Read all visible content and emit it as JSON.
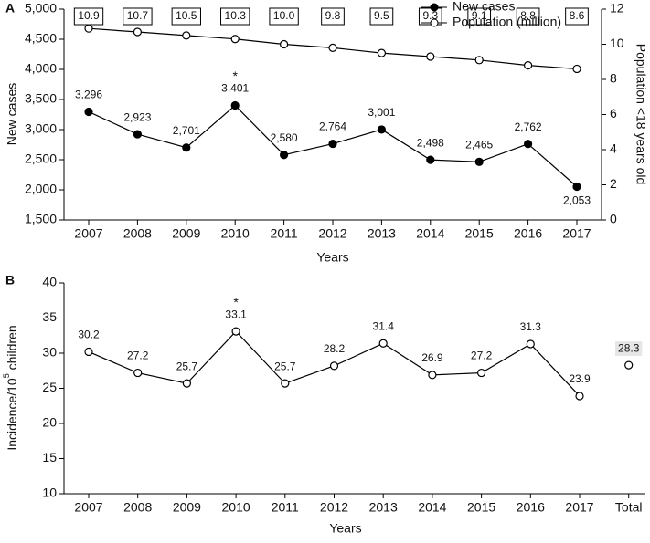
{
  "chart_data": [
    {
      "type": "line",
      "panel_label": "A",
      "xlabel": "Years",
      "ylabel": "New cases",
      "y2label": "Population <18 years old",
      "categories": [
        "2007",
        "2008",
        "2009",
        "2010",
        "2011",
        "2012",
        "2013",
        "2014",
        "2015",
        "2016",
        "2017"
      ],
      "series": [
        {
          "name": "New cases",
          "color": "#000000",
          "marker": "filled",
          "values": [
            3296,
            2923,
            2701,
            3401,
            2580,
            2764,
            3001,
            2498,
            2465,
            2762,
            2053
          ],
          "value_labels": [
            "3,296",
            "2,923",
            "2,701",
            "3,401",
            "2,580",
            "2,764",
            "3,001",
            "2,498",
            "2,465",
            "2,762",
            "2,053"
          ]
        },
        {
          "name": "Population (million)",
          "color": "#000000",
          "marker": "open",
          "axis": "y2",
          "boxed_labels": true,
          "values": [
            10.9,
            10.7,
            10.5,
            10.3,
            10.0,
            9.8,
            9.5,
            9.3,
            9.1,
            8.8,
            8.6
          ],
          "value_labels": [
            "10.9",
            "10.7",
            "10.5",
            "10.3",
            "10.0",
            "9.8",
            "9.5",
            "9.3",
            "9.1",
            "8.8",
            "8.6"
          ]
        }
      ],
      "annotations": [
        {
          "text": "*",
          "x": "2010"
        }
      ],
      "ylim": [
        1500,
        5000
      ],
      "yticks": [
        {
          "value": 1500,
          "label": "1,500"
        },
        {
          "value": 2000,
          "label": "2,000"
        },
        {
          "value": 2500,
          "label": "2,500"
        },
        {
          "value": 3000,
          "label": "3,000"
        },
        {
          "value": 3500,
          "label": "3,500"
        },
        {
          "value": 4000,
          "label": "4,000"
        },
        {
          "value": 4500,
          "label": "4,500"
        },
        {
          "value": 5000,
          "label": "5,000"
        }
      ],
      "y2lim": [
        0,
        12
      ],
      "y2ticks": [
        0,
        2,
        4,
        6,
        8,
        10,
        12
      ],
      "legend": "upper right"
    },
    {
      "type": "line",
      "panel_label": "B",
      "xlabel": "Years",
      "ylabel": "Incidence/10",
      "ylabel_sup": "5",
      "ylabel_end": " children",
      "categories": [
        "2007",
        "2008",
        "2009",
        "2010",
        "2011",
        "2012",
        "2013",
        "2014",
        "2015",
        "2016",
        "2017",
        "Total"
      ],
      "series": [
        {
          "color": "#000000",
          "marker": "open",
          "values": [
            30.2,
            27.2,
            25.7,
            33.1,
            25.7,
            28.2,
            31.4,
            26.9,
            27.2,
            31.3,
            23.9,
            null
          ]
        },
        {
          "color": "#000000",
          "marker": "open",
          "connected": false,
          "shaded_labels": true,
          "values": [
            null,
            null,
            null,
            null,
            null,
            null,
            null,
            null,
            null,
            null,
            null,
            28.3
          ]
        }
      ],
      "annotations": [
        {
          "text": "*",
          "x": "2010"
        }
      ],
      "ylim": [
        10,
        40
      ],
      "yticks": [
        10,
        15,
        20,
        25,
        30,
        35,
        40
      ]
    }
  ]
}
